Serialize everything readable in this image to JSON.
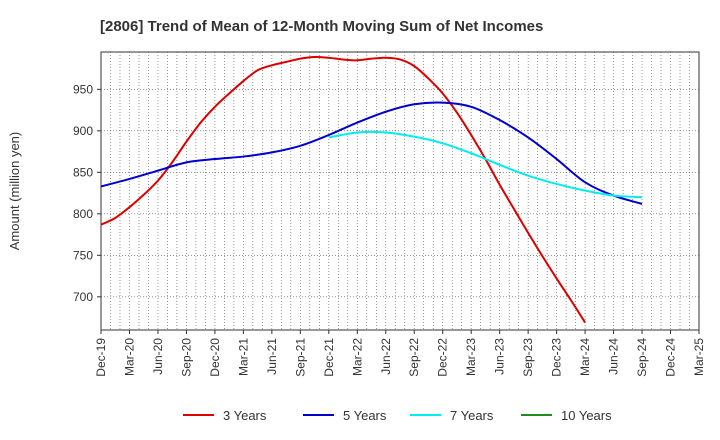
{
  "chart_data": {
    "type": "line",
    "title": "[2806]  Trend of Mean of 12-Month Moving Sum of Net Incomes",
    "ylabel": "Amount (million yen)",
    "xlabel": "",
    "ylim": [
      660,
      995
    ],
    "yticks": [
      700,
      750,
      800,
      850,
      900,
      950
    ],
    "x_tick_labels": [
      "Dec-19",
      "Mar-20",
      "Jun-20",
      "Sep-20",
      "Dec-20",
      "Mar-21",
      "Jun-21",
      "Sep-21",
      "Dec-21",
      "Mar-22",
      "Jun-22",
      "Sep-22",
      "Dec-22",
      "Mar-23",
      "Jun-23",
      "Sep-23",
      "Dec-23",
      "Mar-24",
      "Jun-24",
      "Sep-24",
      "Dec-24",
      "Mar-25"
    ],
    "grid": true,
    "legend_position": "bottom",
    "series": [
      {
        "name": "3 Years",
        "color": "#dd0000",
        "points": [
          [
            0,
            787
          ],
          [
            0.5,
            795
          ],
          [
            1,
            808
          ],
          [
            1.5,
            823
          ],
          [
            2,
            840
          ],
          [
            2.5,
            862
          ],
          [
            3,
            887
          ],
          [
            3.5,
            910
          ],
          [
            4,
            929
          ],
          [
            4.5,
            945
          ],
          [
            5,
            960
          ],
          [
            5.5,
            973
          ],
          [
            6,
            979
          ],
          [
            6.5,
            983
          ],
          [
            7,
            987
          ],
          [
            7.5,
            989
          ],
          [
            8,
            988
          ],
          [
            8.5,
            986
          ],
          [
            9,
            985
          ],
          [
            9.5,
            987
          ],
          [
            10,
            988
          ],
          [
            10.5,
            986
          ],
          [
            11,
            978
          ],
          [
            11.5,
            963
          ],
          [
            12,
            945
          ],
          [
            12.5,
            922
          ],
          [
            13,
            895
          ],
          [
            13.5,
            866
          ],
          [
            14,
            835
          ],
          [
            14.5,
            806
          ],
          [
            15,
            777
          ],
          [
            15.5,
            749
          ],
          [
            16,
            722
          ],
          [
            16.5,
            696
          ],
          [
            17,
            669
          ]
        ]
      },
      {
        "name": "5 Years",
        "color": "#0000cc",
        "points": [
          [
            0,
            833
          ],
          [
            1,
            842
          ],
          [
            2,
            852
          ],
          [
            3,
            862
          ],
          [
            4,
            866
          ],
          [
            5,
            869
          ],
          [
            6,
            874
          ],
          [
            7,
            882
          ],
          [
            8,
            895
          ],
          [
            9,
            910
          ],
          [
            10,
            923
          ],
          [
            11,
            932
          ],
          [
            12,
            934
          ],
          [
            13,
            929
          ],
          [
            14,
            913
          ],
          [
            15,
            892
          ],
          [
            16,
            866
          ],
          [
            17,
            838
          ],
          [
            18,
            822
          ],
          [
            19,
            812
          ]
        ]
      },
      {
        "name": "7 Years",
        "color": "#00eeee",
        "points": [
          [
            8,
            892
          ],
          [
            9,
            898
          ],
          [
            10,
            898
          ],
          [
            11,
            893
          ],
          [
            12,
            885
          ],
          [
            13,
            873
          ],
          [
            14,
            859
          ],
          [
            15,
            846
          ],
          [
            16,
            836
          ],
          [
            17,
            828
          ],
          [
            18,
            822
          ],
          [
            19,
            820
          ]
        ]
      },
      {
        "name": "10 Years",
        "color": "#228b22",
        "points": []
      }
    ]
  }
}
